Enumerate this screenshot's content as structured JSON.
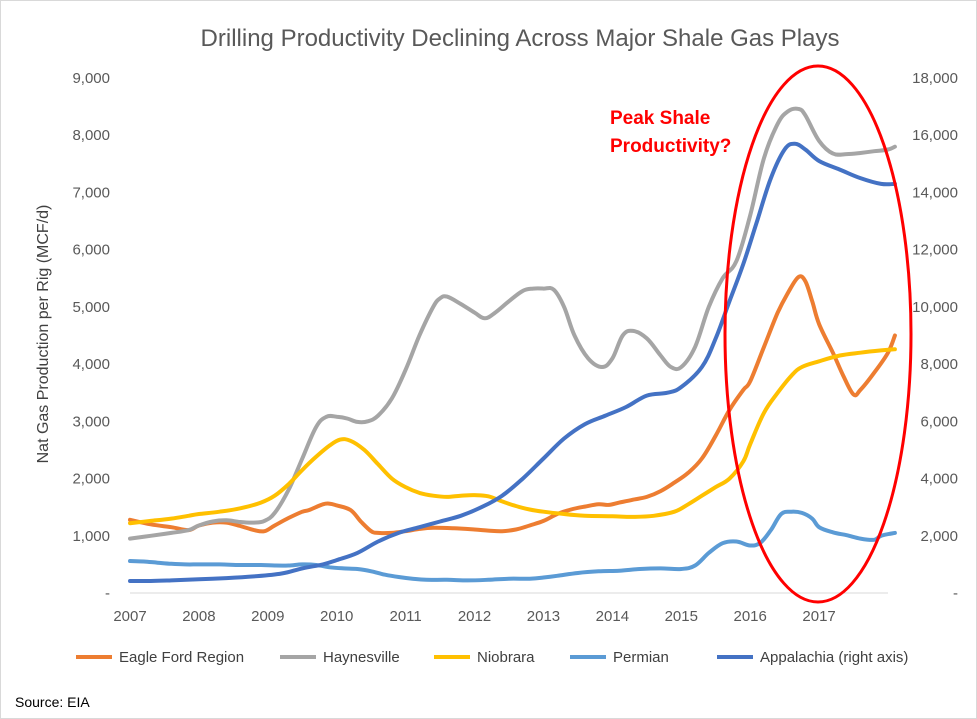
{
  "chart_data": {
    "type": "line",
    "title": "Drilling Productivity Declining Across Major Shale Gas Plays",
    "ylabel": "Nat Gas Production per Rig (MCF/d)",
    "xlabel": "",
    "ylim": [
      0,
      9000
    ],
    "y2lim": [
      0,
      18000
    ],
    "xlim": [
      2007,
      2018.0
    ],
    "x_ticks": [
      2007,
      2008,
      2009,
      2010,
      2011,
      2012,
      2013,
      2014,
      2015,
      2016,
      2017
    ],
    "x_tick_labels": [
      "2007",
      "2008",
      "2009",
      "2010",
      "2011",
      "2012",
      "2013",
      "2014",
      "2015",
      "2016",
      "2017"
    ],
    "y_ticks": [
      0,
      1000,
      2000,
      3000,
      4000,
      5000,
      6000,
      7000,
      8000,
      9000
    ],
    "y_tick_labels": [
      "-",
      "1,000",
      "2,000",
      "3,000",
      "4,000",
      "5,000",
      "6,000",
      "7,000",
      "8,000",
      "9,000"
    ],
    "y2_ticks": [
      0,
      2000,
      4000,
      6000,
      8000,
      10000,
      12000,
      14000,
      16000,
      18000
    ],
    "y2_tick_labels": [
      "-",
      "2,000",
      "4,000",
      "6,000",
      "8,000",
      "10,000",
      "12,000",
      "14,000",
      "16,000",
      "18,000"
    ],
    "grid": false,
    "legend_position": "bottom",
    "annotation": {
      "text_lines": [
        "Peak Shale",
        "Productivity?"
      ],
      "color": "#ff0000"
    },
    "source": "Source: EIA",
    "series": [
      {
        "name": "Eagle Ford Region",
        "color": "#ed7d31",
        "axis": "left",
        "points": [
          [
            2007.0,
            1280
          ],
          [
            2007.3,
            1200
          ],
          [
            2007.6,
            1150
          ],
          [
            2007.85,
            1100
          ],
          [
            2008.0,
            1180
          ],
          [
            2008.2,
            1230
          ],
          [
            2008.4,
            1230
          ],
          [
            2008.6,
            1170
          ],
          [
            2008.8,
            1100
          ],
          [
            2008.95,
            1080
          ],
          [
            2009.1,
            1180
          ],
          [
            2009.3,
            1310
          ],
          [
            2009.5,
            1420
          ],
          [
            2009.6,
            1450
          ],
          [
            2009.8,
            1550
          ],
          [
            2009.9,
            1560
          ],
          [
            2010.0,
            1530
          ],
          [
            2010.2,
            1450
          ],
          [
            2010.35,
            1250
          ],
          [
            2010.5,
            1080
          ],
          [
            2010.6,
            1050
          ],
          [
            2010.8,
            1050
          ],
          [
            2011.0,
            1080
          ],
          [
            2011.2,
            1120
          ],
          [
            2011.4,
            1140
          ],
          [
            2011.7,
            1130
          ],
          [
            2012.0,
            1110
          ],
          [
            2012.2,
            1090
          ],
          [
            2012.4,
            1080
          ],
          [
            2012.6,
            1110
          ],
          [
            2012.8,
            1180
          ],
          [
            2013.0,
            1260
          ],
          [
            2013.2,
            1380
          ],
          [
            2013.4,
            1460
          ],
          [
            2013.6,
            1510
          ],
          [
            2013.8,
            1550
          ],
          [
            2013.95,
            1540
          ],
          [
            2014.1,
            1580
          ],
          [
            2014.3,
            1630
          ],
          [
            2014.5,
            1680
          ],
          [
            2014.7,
            1780
          ],
          [
            2014.9,
            1930
          ],
          [
            2015.1,
            2100
          ],
          [
            2015.3,
            2350
          ],
          [
            2015.5,
            2750
          ],
          [
            2015.7,
            3200
          ],
          [
            2015.9,
            3550
          ],
          [
            2016.0,
            3700
          ],
          [
            2016.2,
            4300
          ],
          [
            2016.4,
            4900
          ],
          [
            2016.55,
            5250
          ],
          [
            2016.7,
            5520
          ],
          [
            2016.8,
            5450
          ],
          [
            2016.9,
            5100
          ],
          [
            2017.0,
            4700
          ],
          [
            2017.2,
            4200
          ],
          [
            2017.35,
            3800
          ],
          [
            2017.5,
            3470
          ],
          [
            2017.6,
            3550
          ],
          [
            2017.8,
            3850
          ],
          [
            2018.0,
            4200
          ],
          [
            2018.1,
            4500
          ]
        ]
      },
      {
        "name": "Haynesville",
        "color": "#a5a5a5",
        "axis": "left",
        "points": [
          [
            2007.0,
            950
          ],
          [
            2007.3,
            1000
          ],
          [
            2007.6,
            1050
          ],
          [
            2007.85,
            1100
          ],
          [
            2008.0,
            1180
          ],
          [
            2008.2,
            1250
          ],
          [
            2008.4,
            1270
          ],
          [
            2008.6,
            1240
          ],
          [
            2008.8,
            1230
          ],
          [
            2008.95,
            1260
          ],
          [
            2009.1,
            1400
          ],
          [
            2009.3,
            1800
          ],
          [
            2009.5,
            2350
          ],
          [
            2009.7,
            2900
          ],
          [
            2009.85,
            3080
          ],
          [
            2010.0,
            3080
          ],
          [
            2010.15,
            3050
          ],
          [
            2010.3,
            2990
          ],
          [
            2010.45,
            3000
          ],
          [
            2010.6,
            3100
          ],
          [
            2010.8,
            3400
          ],
          [
            2011.0,
            3900
          ],
          [
            2011.2,
            4500
          ],
          [
            2011.4,
            5000
          ],
          [
            2011.5,
            5150
          ],
          [
            2011.6,
            5180
          ],
          [
            2011.8,
            5050
          ],
          [
            2012.0,
            4900
          ],
          [
            2012.15,
            4800
          ],
          [
            2012.3,
            4900
          ],
          [
            2012.5,
            5100
          ],
          [
            2012.7,
            5280
          ],
          [
            2012.85,
            5320
          ],
          [
            2013.0,
            5320
          ],
          [
            2013.15,
            5300
          ],
          [
            2013.3,
            5000
          ],
          [
            2013.45,
            4500
          ],
          [
            2013.65,
            4100
          ],
          [
            2013.85,
            3950
          ],
          [
            2014.0,
            4100
          ],
          [
            2014.15,
            4500
          ],
          [
            2014.3,
            4580
          ],
          [
            2014.5,
            4450
          ],
          [
            2014.7,
            4150
          ],
          [
            2014.85,
            3950
          ],
          [
            2015.0,
            3950
          ],
          [
            2015.2,
            4300
          ],
          [
            2015.4,
            5000
          ],
          [
            2015.6,
            5500
          ],
          [
            2015.8,
            5800
          ],
          [
            2016.0,
            6600
          ],
          [
            2016.2,
            7600
          ],
          [
            2016.4,
            8200
          ],
          [
            2016.55,
            8420
          ],
          [
            2016.7,
            8460
          ],
          [
            2016.8,
            8350
          ],
          [
            2017.0,
            7900
          ],
          [
            2017.2,
            7680
          ],
          [
            2017.4,
            7670
          ],
          [
            2017.6,
            7690
          ],
          [
            2017.8,
            7720
          ],
          [
            2018.0,
            7750
          ],
          [
            2018.1,
            7800
          ]
        ]
      },
      {
        "name": "Niobrara",
        "color": "#ffc000",
        "axis": "left",
        "points": [
          [
            2007.0,
            1220
          ],
          [
            2007.3,
            1260
          ],
          [
            2007.6,
            1300
          ],
          [
            2007.85,
            1350
          ],
          [
            2008.0,
            1380
          ],
          [
            2008.3,
            1420
          ],
          [
            2008.6,
            1480
          ],
          [
            2008.9,
            1580
          ],
          [
            2009.1,
            1700
          ],
          [
            2009.3,
            1900
          ],
          [
            2009.5,
            2150
          ],
          [
            2009.7,
            2380
          ],
          [
            2009.9,
            2580
          ],
          [
            2010.05,
            2680
          ],
          [
            2010.2,
            2660
          ],
          [
            2010.4,
            2500
          ],
          [
            2010.6,
            2250
          ],
          [
            2010.8,
            2000
          ],
          [
            2011.0,
            1850
          ],
          [
            2011.2,
            1750
          ],
          [
            2011.4,
            1700
          ],
          [
            2011.6,
            1680
          ],
          [
            2011.8,
            1700
          ],
          [
            2012.0,
            1710
          ],
          [
            2012.2,
            1690
          ],
          [
            2012.4,
            1600
          ],
          [
            2012.6,
            1520
          ],
          [
            2012.8,
            1460
          ],
          [
            2013.0,
            1420
          ],
          [
            2013.3,
            1380
          ],
          [
            2013.6,
            1350
          ],
          [
            2014.0,
            1340
          ],
          [
            2014.3,
            1330
          ],
          [
            2014.6,
            1350
          ],
          [
            2014.9,
            1420
          ],
          [
            2015.1,
            1550
          ],
          [
            2015.3,
            1700
          ],
          [
            2015.5,
            1850
          ],
          [
            2015.7,
            2000
          ],
          [
            2015.9,
            2300
          ],
          [
            2016.0,
            2600
          ],
          [
            2016.2,
            3150
          ],
          [
            2016.4,
            3500
          ],
          [
            2016.6,
            3800
          ],
          [
            2016.75,
            3950
          ],
          [
            2017.0,
            4050
          ],
          [
            2017.3,
            4150
          ],
          [
            2017.6,
            4200
          ],
          [
            2017.9,
            4240
          ],
          [
            2018.1,
            4260
          ]
        ]
      },
      {
        "name": "Permian",
        "color": "#5b9bd5",
        "axis": "left",
        "points": [
          [
            2007.0,
            560
          ],
          [
            2007.2,
            550
          ],
          [
            2007.4,
            530
          ],
          [
            2007.6,
            510
          ],
          [
            2007.8,
            500
          ],
          [
            2008.0,
            500
          ],
          [
            2008.3,
            500
          ],
          [
            2008.6,
            490
          ],
          [
            2008.9,
            490
          ],
          [
            2009.1,
            480
          ],
          [
            2009.3,
            480
          ],
          [
            2009.5,
            500
          ],
          [
            2009.7,
            490
          ],
          [
            2009.9,
            450
          ],
          [
            2010.1,
            430
          ],
          [
            2010.3,
            420
          ],
          [
            2010.5,
            380
          ],
          [
            2010.7,
            320
          ],
          [
            2010.9,
            280
          ],
          [
            2011.1,
            250
          ],
          [
            2011.3,
            230
          ],
          [
            2011.6,
            230
          ],
          [
            2011.9,
            220
          ],
          [
            2012.2,
            230
          ],
          [
            2012.5,
            250
          ],
          [
            2012.8,
            250
          ],
          [
            2013.0,
            270
          ],
          [
            2013.2,
            300
          ],
          [
            2013.5,
            350
          ],
          [
            2013.8,
            380
          ],
          [
            2014.1,
            390
          ],
          [
            2014.4,
            420
          ],
          [
            2014.7,
            430
          ],
          [
            2015.0,
            420
          ],
          [
            2015.2,
            480
          ],
          [
            2015.4,
            700
          ],
          [
            2015.6,
            870
          ],
          [
            2015.8,
            900
          ],
          [
            2016.0,
            830
          ],
          [
            2016.15,
            880
          ],
          [
            2016.3,
            1100
          ],
          [
            2016.45,
            1380
          ],
          [
            2016.6,
            1420
          ],
          [
            2016.75,
            1400
          ],
          [
            2016.9,
            1300
          ],
          [
            2017.0,
            1150
          ],
          [
            2017.2,
            1060
          ],
          [
            2017.4,
            1010
          ],
          [
            2017.6,
            950
          ],
          [
            2017.8,
            930
          ],
          [
            2017.9,
            1000
          ],
          [
            2018.1,
            1050
          ]
        ]
      },
      {
        "name": "Appalachia (right axis)",
        "color": "#4472c4",
        "axis": "right",
        "points": [
          [
            2007.0,
            420
          ],
          [
            2007.3,
            420
          ],
          [
            2007.6,
            440
          ],
          [
            2008.0,
            480
          ],
          [
            2008.4,
            520
          ],
          [
            2008.8,
            580
          ],
          [
            2009.2,
            680
          ],
          [
            2009.5,
            860
          ],
          [
            2009.8,
            1000
          ],
          [
            2010.0,
            1150
          ],
          [
            2010.3,
            1400
          ],
          [
            2010.6,
            1800
          ],
          [
            2010.9,
            2100
          ],
          [
            2011.2,
            2300
          ],
          [
            2011.5,
            2500
          ],
          [
            2011.8,
            2700
          ],
          [
            2012.1,
            3000
          ],
          [
            2012.4,
            3400
          ],
          [
            2012.7,
            4000
          ],
          [
            2013.0,
            4700
          ],
          [
            2013.3,
            5400
          ],
          [
            2013.6,
            5900
          ],
          [
            2013.9,
            6200
          ],
          [
            2014.2,
            6500
          ],
          [
            2014.5,
            6900
          ],
          [
            2014.8,
            7000
          ],
          [
            2015.0,
            7200
          ],
          [
            2015.3,
            7900
          ],
          [
            2015.5,
            8900
          ],
          [
            2015.7,
            10200
          ],
          [
            2015.9,
            11500
          ],
          [
            2016.1,
            13000
          ],
          [
            2016.3,
            14500
          ],
          [
            2016.5,
            15500
          ],
          [
            2016.65,
            15700
          ],
          [
            2016.8,
            15500
          ],
          [
            2017.0,
            15100
          ],
          [
            2017.3,
            14800
          ],
          [
            2017.6,
            14500
          ],
          [
            2017.9,
            14300
          ],
          [
            2018.1,
            14300
          ]
        ]
      }
    ]
  }
}
